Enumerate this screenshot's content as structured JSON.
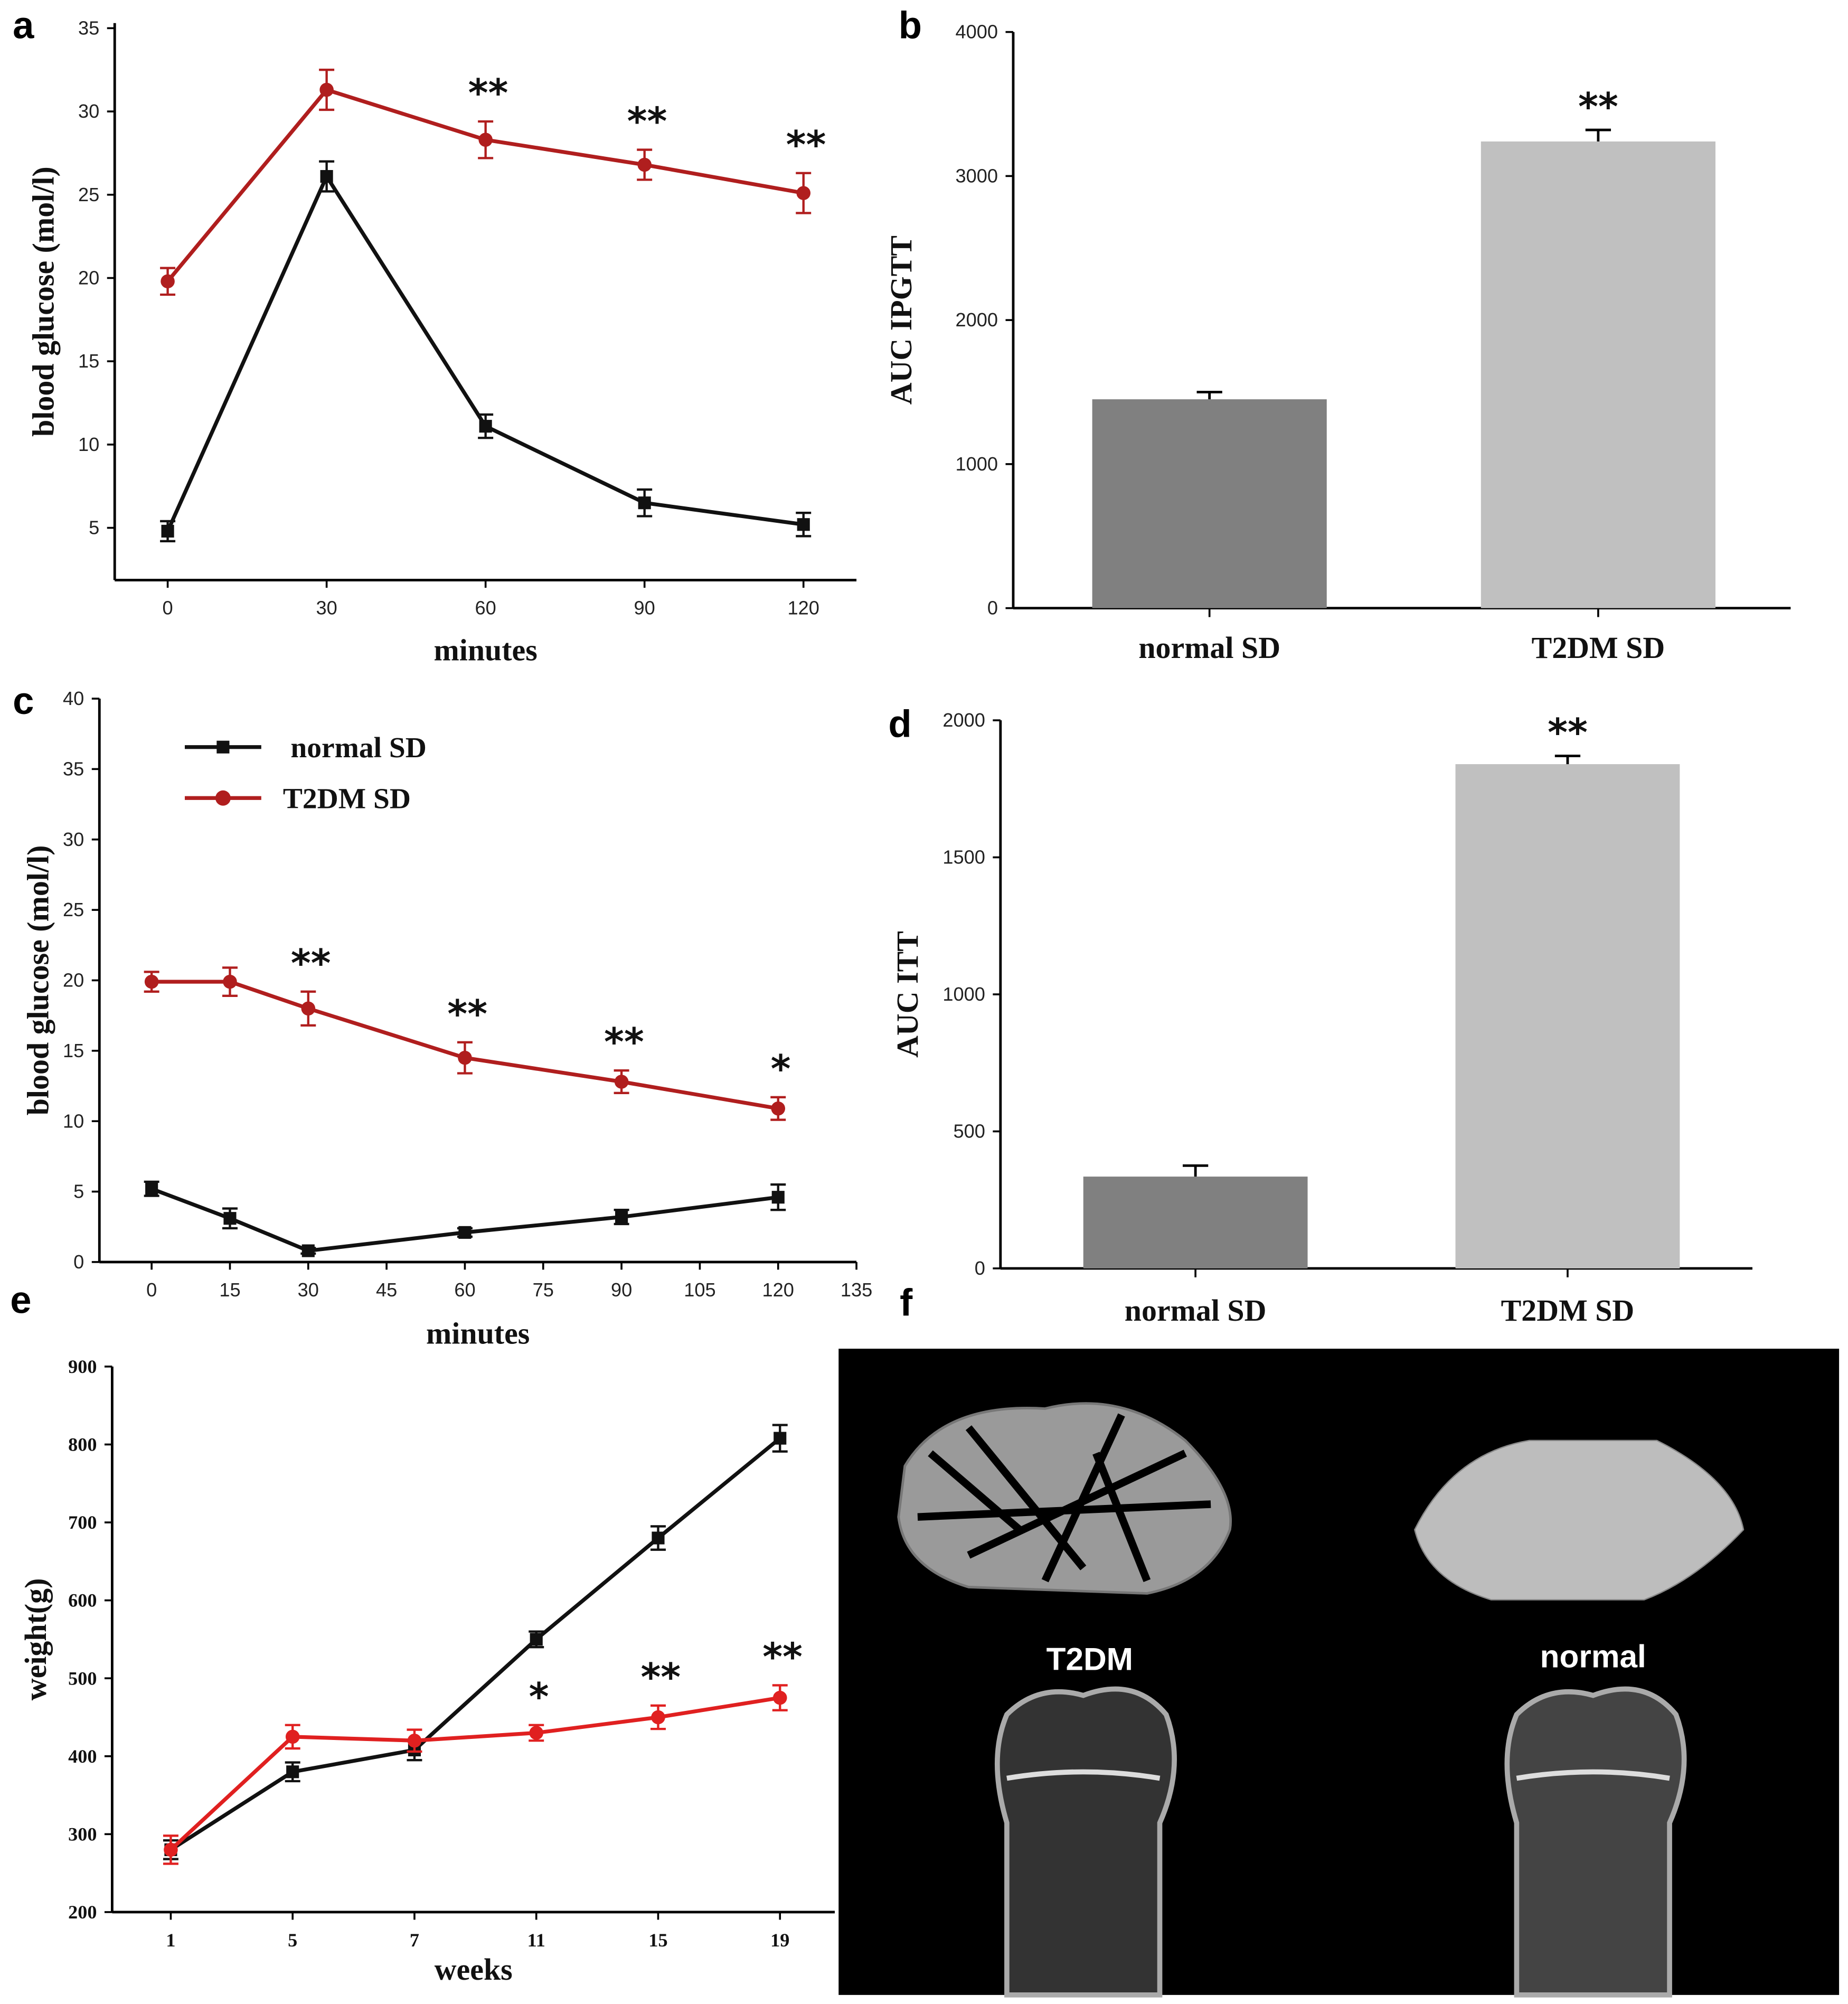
{
  "colors": {
    "normal": "#111111",
    "t2dm_dark": "#b01e1e",
    "t2dm_bright": "#e02020",
    "bar_normal": "#808080",
    "bar_t2dm": "#c0c0c0"
  },
  "chart_data": [
    {
      "panel": "a",
      "type": "line",
      "xlabel": "minutes",
      "ylabel": "blood glucose (mol/l)",
      "xlim": [
        -10,
        130
      ],
      "ylim": [
        1.9,
        35
      ],
      "xticks": [
        0,
        30,
        60,
        90,
        120
      ],
      "yticks": [
        5,
        10,
        15,
        20,
        25,
        30,
        35
      ],
      "series": [
        {
          "name": "normal SD",
          "x": [
            0,
            30,
            60,
            90,
            120
          ],
          "values": [
            4.8,
            26.1,
            11.1,
            6.5,
            5.2
          ],
          "err": [
            0.6,
            0.9,
            0.7,
            0.8,
            0.7
          ]
        },
        {
          "name": "T2DM SD",
          "x": [
            0,
            30,
            60,
            90,
            120
          ],
          "values": [
            19.8,
            31.3,
            28.3,
            26.8,
            25.1
          ],
          "err": [
            0.8,
            1.2,
            1.1,
            0.9,
            1.2
          ]
        }
      ],
      "annotations": [
        {
          "x": 60,
          "text": "**"
        },
        {
          "x": 90,
          "text": "**"
        },
        {
          "x": 120,
          "text": "**"
        }
      ]
    },
    {
      "panel": "b",
      "type": "bar",
      "ylabel": "AUC  IPGTT",
      "ylim": [
        0,
        4000
      ],
      "yticks": [
        0,
        1000,
        2000,
        3000,
        4000
      ],
      "categories": [
        "normal SD",
        "T2DM SD"
      ],
      "values": [
        1450,
        3240
      ],
      "err": [
        50,
        80
      ],
      "annotations": [
        {
          "category": 1,
          "text": "**"
        }
      ]
    },
    {
      "panel": "c",
      "type": "line",
      "xlabel": "minutes",
      "ylabel": "blood glucose (mol/l)",
      "xlim": [
        -10,
        135
      ],
      "ylim": [
        0,
        40
      ],
      "xticks": [
        0,
        15,
        30,
        45,
        60,
        75,
        90,
        105,
        120,
        135
      ],
      "yticks": [
        0,
        5,
        10,
        15,
        20,
        25,
        30,
        35,
        40
      ],
      "legend": [
        "normal SD",
        "T2DM SD"
      ],
      "legend_position": "top-left",
      "series": [
        {
          "name": "normal SD",
          "x": [
            0,
            15,
            30,
            60,
            90,
            120
          ],
          "values": [
            5.2,
            3.1,
            0.8,
            2.1,
            3.2,
            4.6
          ],
          "err": [
            0.5,
            0.7,
            0.2,
            0.3,
            0.5,
            0.9
          ]
        },
        {
          "name": "T2DM SD",
          "x": [
            0,
            15,
            30,
            60,
            90,
            120
          ],
          "values": [
            19.9,
            19.9,
            18.0,
            14.5,
            12.8,
            10.9
          ],
          "err": [
            0.7,
            1.0,
            1.2,
            1.1,
            0.8,
            0.8
          ]
        }
      ],
      "annotations": [
        {
          "x": 30,
          "text": "**"
        },
        {
          "x": 60,
          "text": "**"
        },
        {
          "x": 90,
          "text": "**"
        },
        {
          "x": 120,
          "text": "*"
        }
      ]
    },
    {
      "panel": "d",
      "type": "bar",
      "ylabel": "AUC  ITT",
      "ylim": [
        0,
        2000
      ],
      "yticks": [
        0,
        500,
        1000,
        1500,
        2000
      ],
      "categories": [
        "normal SD",
        "T2DM SD"
      ],
      "values": [
        335,
        1840
      ],
      "err": [
        40,
        30
      ],
      "annotations": [
        {
          "category": 1,
          "text": "**"
        }
      ]
    },
    {
      "panel": "e",
      "type": "line",
      "xlabel": "weeks",
      "ylabel": "weight(g)",
      "ylim": [
        200,
        900
      ],
      "categories": [
        "1",
        "5",
        "7",
        "11",
        "15",
        "19"
      ],
      "yticks": [
        200,
        300,
        400,
        500,
        600,
        700,
        800,
        900
      ],
      "series": [
        {
          "name": "normal SD",
          "values": [
            280,
            380,
            408,
            550,
            680,
            808
          ],
          "err": [
            12,
            12,
            13,
            10,
            15,
            17
          ]
        },
        {
          "name": "T2DM SD",
          "values": [
            280,
            425,
            420,
            430,
            450,
            475
          ],
          "err": [
            18,
            15,
            14,
            10,
            15,
            16
          ]
        }
      ],
      "annotations": [
        {
          "category": 3,
          "text": "*"
        },
        {
          "category": 4,
          "text": "**"
        },
        {
          "category": 5,
          "text": "**"
        }
      ]
    }
  ],
  "panel_f": {
    "label": "f",
    "image_labels": [
      "T2DM",
      "normal"
    ]
  },
  "panel_labels": [
    "a",
    "b",
    "c",
    "d",
    "e"
  ]
}
